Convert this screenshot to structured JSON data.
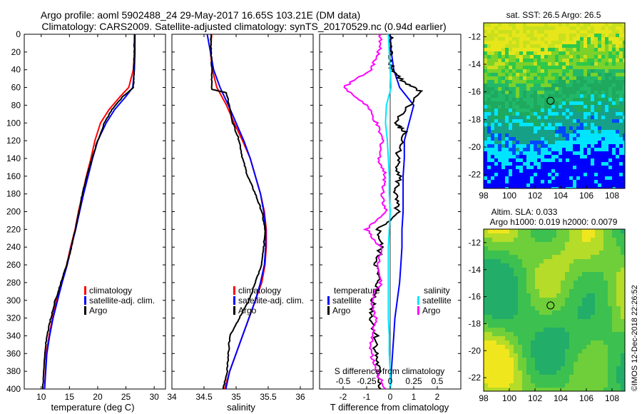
{
  "header": {
    "title_line1": "Argo profile: aoml 5902488_24 29-May-2017 16.65S 103.21E (DM data)",
    "title_line2": "Climatology: CARS2009. Satellite-adjusted climatology: synTS_20170529.nc (0.94d earlier)"
  },
  "footer": {
    "watermark": "©IMOS 12-Dec-2018 22:26:52"
  },
  "colors": {
    "climatology": "#ff0000",
    "satellite": "#0000ff",
    "argo": "#000000",
    "sal_satellite": "#00e5ff",
    "sal_argo": "#ff00ff"
  },
  "chart_data": [
    {
      "type": "line",
      "id": "temperature",
      "xlabel": "temperature (deg C)",
      "xlim": [
        7,
        32
      ],
      "xticks": [
        10,
        15,
        20,
        25,
        30
      ],
      "ylim": [
        400,
        0
      ],
      "yticks": [
        0,
        20,
        40,
        60,
        80,
        100,
        120,
        140,
        160,
        180,
        200,
        220,
        240,
        260,
        280,
        300,
        320,
        340,
        360,
        380,
        400
      ],
      "legend": [
        "climatology",
        "satellite-adj. clim.",
        "Argo"
      ],
      "series": [
        {
          "name": "climatology",
          "color": "#ff0000",
          "x": [
            26.5,
            26.5,
            26.3,
            25.5,
            24,
            22,
            20.5,
            19.5,
            18.8,
            18,
            17.3,
            16.6,
            16,
            15.2,
            14.5,
            13.5,
            12.7,
            12,
            11.4,
            10.9,
            10.6
          ],
          "y": [
            0,
            20,
            40,
            60,
            70,
            85,
            100,
            120,
            140,
            160,
            180,
            200,
            220,
            240,
            260,
            280,
            300,
            320,
            340,
            360,
            400
          ]
        },
        {
          "name": "satellite-adj. clim.",
          "color": "#0000ff",
          "x": [
            26.6,
            26.6,
            26.5,
            26.2,
            25,
            23,
            21.5,
            20,
            19.1,
            18.3,
            17.5,
            16.8,
            16.1,
            15.3,
            14.6,
            13.7,
            12.9,
            12.1,
            11.5,
            11,
            10.6
          ],
          "y": [
            0,
            20,
            40,
            60,
            70,
            85,
            100,
            120,
            140,
            160,
            180,
            200,
            220,
            240,
            260,
            280,
            300,
            320,
            340,
            360,
            400
          ]
        },
        {
          "name": "Argo",
          "color": "#000000",
          "x": [
            26.5,
            26.5,
            26.4,
            26.3,
            24.5,
            22.5,
            21.2,
            20,
            19,
            18.1,
            17.3,
            16.7,
            16,
            15.4,
            14.5,
            13.5,
            12.5,
            11.7,
            11,
            10.6,
            10.3
          ],
          "y": [
            0,
            20,
            40,
            60,
            70,
            85,
            100,
            120,
            140,
            160,
            180,
            200,
            220,
            240,
            260,
            280,
            300,
            320,
            340,
            360,
            400
          ]
        }
      ]
    },
    {
      "type": "line",
      "id": "salinity",
      "xlabel": "salinity",
      "xlim": [
        34,
        36.2
      ],
      "xticks": [
        34,
        34.5,
        35,
        35.5,
        36
      ],
      "ylim": [
        400,
        0
      ],
      "legend": [
        "climatology",
        "satellite-adj. clim.",
        "Argo"
      ],
      "series": [
        {
          "name": "climatology",
          "color": "#ff0000",
          "x": [
            34.62,
            34.6,
            34.63,
            34.7,
            34.85,
            34.97,
            35.1,
            35.22,
            35.3,
            35.38,
            35.44,
            35.47,
            35.47,
            35.45,
            35.4,
            35.3,
            35.2,
            35.1,
            35.0,
            34.9,
            34.82
          ],
          "y": [
            0,
            20,
            40,
            60,
            80,
            100,
            120,
            140,
            160,
            180,
            200,
            220,
            240,
            260,
            280,
            300,
            320,
            340,
            360,
            380,
            400
          ]
        },
        {
          "name": "satellite-adj. clim.",
          "color": "#0000ff",
          "x": [
            34.55,
            34.6,
            34.65,
            34.75,
            34.88,
            35.0,
            35.12,
            35.22,
            35.3,
            35.38,
            35.43,
            35.46,
            35.46,
            35.44,
            35.38,
            35.3,
            35.2,
            35.1,
            35.0,
            34.9,
            34.84
          ],
          "y": [
            0,
            20,
            40,
            60,
            80,
            100,
            120,
            140,
            160,
            180,
            200,
            220,
            240,
            260,
            280,
            300,
            320,
            340,
            360,
            380,
            400
          ]
        },
        {
          "name": "Argo",
          "color": "#000000",
          "x": [
            34.61,
            34.61,
            34.62,
            34.62,
            34.85,
            34.95,
            35.05,
            35.1,
            35.18,
            35.3,
            35.4,
            35.45,
            35.43,
            35.4,
            35.3,
            35.2,
            35.05,
            34.9,
            34.88,
            34.86,
            34.8
          ],
          "y": [
            0,
            20,
            40,
            62,
            66,
            100,
            120,
            140,
            160,
            180,
            200,
            220,
            240,
            260,
            280,
            300,
            320,
            340,
            360,
            380,
            400
          ]
        }
      ]
    },
    {
      "type": "line",
      "id": "difference",
      "xlabel": "T difference from climatology",
      "xlim": [
        -3,
        3
      ],
      "xticks": [
        -2,
        -1,
        0,
        1,
        2
      ],
      "top_axis_label": "S difference from climatology",
      "top_xticks": [
        -0.5,
        -0.25,
        0,
        0.25,
        0.5
      ],
      "top_xlim": [
        -0.75,
        0.75
      ],
      "ylim": [
        400,
        0
      ],
      "legend_temperature_title": "temperature",
      "legend_salinity_title": "salinity",
      "legend_temperature": [
        "satellite",
        "Argo"
      ],
      "legend_salinity": [
        "satellite",
        "Argo"
      ],
      "series": [
        {
          "name": "T satellite",
          "color": "#0000ff",
          "axis": "T",
          "x": [
            0.0,
            0.05,
            0.15,
            0.4,
            1.0,
            0.8,
            0.6,
            0.6,
            0.55,
            0.55,
            0.55,
            0.5,
            0.5,
            0.45,
            0.4,
            0.3,
            0.2,
            0.15,
            0.1,
            0.05,
            0.0
          ],
          "y": [
            0,
            20,
            40,
            60,
            80,
            100,
            120,
            140,
            160,
            180,
            200,
            220,
            240,
            260,
            280,
            300,
            320,
            340,
            360,
            380,
            400
          ]
        },
        {
          "name": "T Argo",
          "color": "#000000",
          "axis": "T",
          "x": [
            0.0,
            0.0,
            0.1,
            0.6,
            1.3,
            0.2,
            0.6,
            0.3,
            0.4,
            0.2,
            0.3,
            -0.5,
            -0.4,
            -0.6,
            -0.5,
            -0.7,
            -0.8,
            -0.6,
            -0.6,
            -0.5,
            -0.4
          ],
          "y": [
            0,
            20,
            40,
            55,
            65,
            100,
            110,
            140,
            160,
            180,
            200,
            220,
            240,
            260,
            280,
            300,
            320,
            340,
            360,
            380,
            400
          ]
        },
        {
          "name": "S satellite",
          "color": "#00e5ff",
          "axis": "S",
          "x": [
            -0.02,
            -0.01,
            0.0,
            0.01,
            -0.04,
            -0.05,
            -0.03,
            -0.02,
            -0.01,
            -0.01,
            0.0,
            -0.01,
            -0.02,
            -0.02,
            -0.02,
            -0.02,
            -0.02,
            -0.01,
            -0.01,
            0.0,
            0.0
          ],
          "y": [
            0,
            20,
            40,
            60,
            80,
            100,
            120,
            140,
            160,
            180,
            200,
            220,
            240,
            260,
            280,
            300,
            320,
            340,
            360,
            380,
            400
          ]
        },
        {
          "name": "S Argo",
          "color": "#ff00ff",
          "axis": "S",
          "x": [
            -0.1,
            -0.12,
            -0.2,
            -0.5,
            -0.25,
            -0.15,
            -0.08,
            -0.12,
            -0.05,
            -0.08,
            -0.05,
            -0.25,
            -0.1,
            -0.12,
            -0.1,
            -0.2,
            -0.15,
            -0.2,
            -0.2,
            -0.15,
            -0.05
          ],
          "y": [
            0,
            20,
            40,
            60,
            80,
            100,
            120,
            140,
            160,
            180,
            200,
            220,
            240,
            260,
            280,
            300,
            320,
            340,
            360,
            380,
            400
          ]
        }
      ]
    },
    {
      "type": "heatmap",
      "id": "sst_map",
      "title": "sat. SST: 26.5 Argo: 26.5",
      "xlim": [
        98,
        109
      ],
      "xticks": [
        98,
        100,
        102,
        104,
        106,
        108
      ],
      "ylim": [
        -23,
        -11
      ],
      "yticks": [
        -12,
        -14,
        -16,
        -18,
        -20,
        -22
      ],
      "argo_position": {
        "lon": 103.21,
        "lat": -16.65
      }
    },
    {
      "type": "heatmap",
      "id": "sla_map",
      "title_line1": "Altim. SLA: 0.033",
      "title_line2": "Argo h1000: 0.019 h2000: 0.0079",
      "xlim": [
        98,
        109
      ],
      "xticks": [
        98,
        100,
        102,
        104,
        106,
        108
      ],
      "ylim": [
        -23,
        -11
      ],
      "yticks": [
        -12,
        -14,
        -16,
        -18,
        -20,
        -22
      ],
      "argo_position": {
        "lon": 103.21,
        "lat": -16.65
      }
    }
  ]
}
